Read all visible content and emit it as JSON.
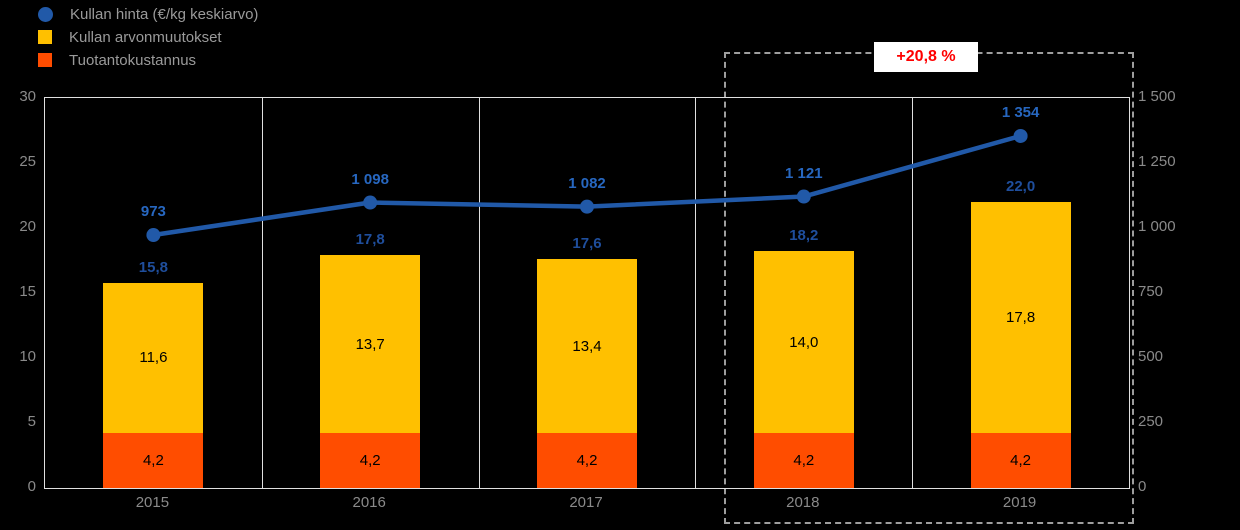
{
  "legend": {
    "items": [
      {
        "label": "Kullan hinta (€/kg keskiarvo)",
        "marker": "circle",
        "color": "#2159A8"
      },
      {
        "label": "Kullan arvonmuutokset",
        "marker": "square",
        "color": "#FFC000"
      },
      {
        "label": "Tuotantokustannus",
        "marker": "square",
        "color": "#FF4D00"
      }
    ]
  },
  "annotation": {
    "text": "+20,8 %"
  },
  "colors": {
    "line": "#2159A8",
    "bar_top": "#FFC000",
    "bar_bottom": "#FF4D00",
    "annotation_text": "#FF0000",
    "annotation_bg": "#FFFFFF"
  },
  "chart_data": {
    "type": "combo-stacked-bar-line",
    "categories": [
      "2015",
      "2016",
      "2017",
      "2018",
      "2019"
    ],
    "bar_series": [
      {
        "name": "Tuotantokustannus",
        "key": "bottom",
        "color": "#FF4D00",
        "values": [
          4.2,
          4.2,
          4.2,
          4.2,
          4.2
        ],
        "labels": [
          "4,2",
          "4,2",
          "4,2",
          "4,2",
          "4,2"
        ]
      },
      {
        "name": "Kullan arvonmuutokset",
        "key": "top",
        "color": "#FFC000",
        "values": [
          11.6,
          13.7,
          13.4,
          14.0,
          17.8
        ],
        "labels": [
          "11,6",
          "13,7",
          "13,4",
          "14,0",
          "17,8"
        ]
      }
    ],
    "totals": {
      "values": [
        15.8,
        17.8,
        17.6,
        18.2,
        22.0
      ],
      "labels": [
        "15,8",
        "17,8",
        "17,6",
        "18,2",
        "22,0"
      ]
    },
    "line_series": {
      "name": "Kullan hinta (€/kg keskiarvo)",
      "color": "#2159A8",
      "axis": "right",
      "values": [
        973,
        1098,
        1082,
        1121,
        1354
      ],
      "labels": [
        "973",
        "1 098",
        "1 082",
        "1 121",
        "1 354"
      ]
    },
    "left_axis": {
      "min": 0,
      "max": 30,
      "step": 5,
      "ticks": [
        "30",
        "25",
        "20",
        "15",
        "10",
        "5",
        "0"
      ]
    },
    "right_axis": {
      "min": 0,
      "max": 1500,
      "step": 250,
      "ticks": [
        "1 500",
        "1 250",
        "1 000",
        "750",
        "500",
        "250",
        "0"
      ]
    },
    "highlight": {
      "from": "2018",
      "to": "2019",
      "label": "+20,8 %"
    },
    "legend_position": "top-left",
    "grid": "vertical-category-separators-only"
  }
}
